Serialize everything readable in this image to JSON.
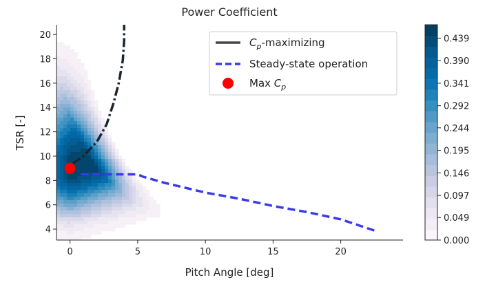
{
  "chart_data": {
    "type": "heatmap",
    "title": "Power Coefficient",
    "xlabel": "Pitch Angle [deg]",
    "ylabel": "TSR [-]",
    "xlim": [
      -1,
      24.6
    ],
    "ylim": [
      3.1,
      20.8
    ],
    "xticks": [
      0,
      5,
      10,
      15,
      20
    ],
    "yticks": [
      4,
      6,
      8,
      10,
      12,
      14,
      16,
      18,
      20
    ],
    "colorbar": {
      "min": 0.0,
      "max": 0.468,
      "colormap": "PuBu",
      "ticks": [
        "0.000",
        "0.049",
        "0.097",
        "0.146",
        "0.195",
        "0.244",
        "0.292",
        "0.341",
        "0.390",
        "0.439"
      ]
    },
    "legend": {
      "position": "top-right",
      "entries": [
        {
          "name": "cp_max",
          "prefix": "C",
          "sub": "p",
          "suffix": "-maximizing",
          "color": "#444444",
          "style": "solid"
        },
        {
          "name": "steady",
          "text": "Steady-state operation",
          "color": "#3a3ae8",
          "style": "dashed"
        },
        {
          "name": "max_cp",
          "prefix": "Max ",
          "italic": "C",
          "sub": "p",
          "color": "#ff0000",
          "style": "marker"
        }
      ]
    },
    "series": [
      {
        "name": "Cp-maximizing",
        "color": "#1a2530",
        "style": "dashdot",
        "x": [
          0.2,
          1.0,
          2.0,
          2.7,
          3.2,
          3.6,
          3.9,
          4.0,
          4.0
        ],
        "y": [
          9.4,
          10.0,
          11.2,
          12.6,
          14.3,
          16.0,
          17.9,
          19.5,
          20.8
        ]
      },
      {
        "name": "Steady-state operation",
        "color": "#3a3ae8",
        "style": "dashed",
        "x": [
          0.8,
          5.0,
          5.4,
          7.0,
          10.0,
          12.5,
          15.0,
          17.5,
          20.0,
          22.7
        ],
        "y": [
          8.5,
          8.5,
          8.3,
          7.8,
          7.0,
          6.5,
          5.9,
          5.4,
          4.8,
          3.8
        ]
      },
      {
        "name": "Max Cp",
        "color": "#ff0000",
        "style": "marker",
        "x": [
          0.0
        ],
        "y": [
          9.0
        ]
      }
    ]
  }
}
